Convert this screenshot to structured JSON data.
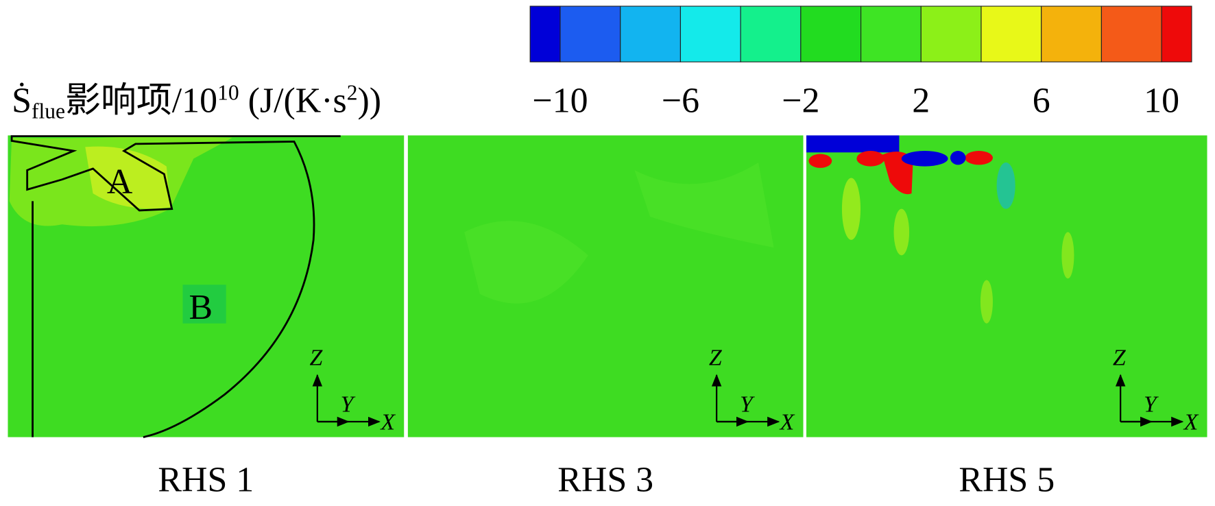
{
  "chart_data": {
    "type": "colorbar",
    "label": {
      "symbol": "Ṡ",
      "subscript": "flue",
      "text": "影响项/10",
      "exponent": "10",
      "unit_open": " (J/(K·s",
      "unit_exponent": "2",
      "unit_close": "))"
    },
    "range": [
      -11,
      11
    ],
    "boundaries": [
      -10,
      -8,
      -6,
      -4,
      -2,
      0,
      2,
      4,
      6,
      8,
      10
    ],
    "colors": [
      "#0000d8",
      "#1c5cf0",
      "#12b4f0",
      "#14eaea",
      "#14f08c",
      "#22dc20",
      "#3ee424",
      "#8cf018",
      "#e8f818",
      "#f4b20c",
      "#f45a18",
      "#ee0a0a"
    ],
    "ticks": [
      {
        "value": -10,
        "label": "−10"
      },
      {
        "value": -6,
        "label": "−6"
      },
      {
        "value": -2,
        "label": "−2"
      },
      2,
      6,
      10
    ]
  },
  "panels": [
    {
      "title": "RHS 1",
      "axes": {
        "z": "Z",
        "y": "Y",
        "x": "X"
      },
      "regions": [
        "A",
        "B"
      ]
    },
    {
      "title": "RHS 3",
      "axes": {
        "z": "Z",
        "y": "Y",
        "x": "X"
      }
    },
    {
      "title": "RHS 5",
      "axes": {
        "z": "Z",
        "y": "Y",
        "x": "X"
      }
    }
  ]
}
